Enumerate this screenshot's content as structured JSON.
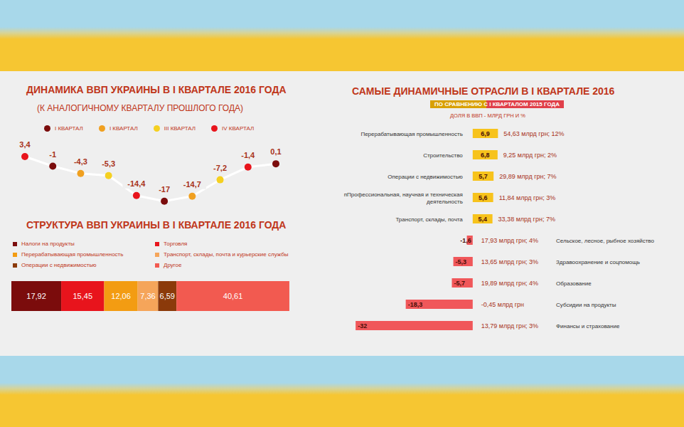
{
  "chart_data": [
    {
      "type": "line",
      "title": "ДИНАМИКА ВВП УКРАИНЫ В I КВАРТАЛЕ 2016 ГОДА",
      "subtitle": "(К АНАЛОГИЧНОМУ КВАРТАЛУ ПРОШЛОГО ГОДА)",
      "categories": [
        null,
        null,
        null,
        null,
        null,
        null,
        null,
        null,
        null,
        null
      ],
      "ylim": [
        -20,
        6
      ],
      "tick_labels": false,
      "legend": "top",
      "data_labels": true,
      "series": [
        {
          "type": "line",
          "color": "#ffffff",
          "values": [
            3.4,
            -1,
            -4.3,
            -5.3,
            -14.4,
            -17,
            -14.7,
            -7.2,
            -1.4,
            0.1
          ],
          "value_labels": [
            "3,4",
            "-1",
            "-4,3",
            "-5,3",
            "-14,4",
            "-17",
            "-14,7",
            "-7,2",
            "-1,4",
            "0,1"
          ]
        },
        {
          "name": "I КВАРТАЛ",
          "type": "scatter",
          "marker": "circle",
          "color": "#7b0c0c",
          "values": [
            null,
            -1,
            null,
            null,
            null,
            -17,
            null,
            null,
            null,
            0.1
          ]
        },
        {
          "name": "I КВАРТАЛ",
          "type": "scatter",
          "marker": "circle",
          "color": "#f0a020",
          "values": [
            null,
            null,
            -4.3,
            null,
            null,
            null,
            -14.7,
            null,
            null,
            null
          ]
        },
        {
          "name": "III КВАРТАЛ",
          "type": "scatter",
          "marker": "circle",
          "color": "#f5d020",
          "values": [
            null,
            null,
            null,
            -5.3,
            null,
            null,
            null,
            -7.2,
            null,
            null
          ]
        },
        {
          "name": "IV КВАРТАЛ",
          "type": "scatter",
          "marker": "circle",
          "color": "#e8141c",
          "values": [
            3.4,
            null,
            null,
            null,
            -14.4,
            null,
            null,
            null,
            -1.4,
            null
          ]
        }
      ]
    },
    {
      "type": "bar",
      "orientation": "horizontal",
      "stacked": true,
      "title": "СТРУКТУРА ВВП УКРАИНЫ В I КВАРТАЛЕ 2016 ГОДА",
      "categories": [
        null
      ],
      "xlim": [
        0,
        100
      ],
      "tick_labels": false,
      "legend": "top",
      "data_labels": true,
      "series": [
        {
          "name": "Налоги на продукты",
          "color": "#7b0c0c",
          "values": [
            17.92
          ],
          "value_labels": [
            "17,92"
          ]
        },
        {
          "name": "Торговля",
          "color": "#e8141c",
          "values": [
            15.45
          ],
          "value_labels": [
            "15,45"
          ]
        },
        {
          "name": "Перерабатывающая промышленность",
          "color": "#f39c12",
          "values": [
            12.06
          ],
          "value_labels": [
            "12,06"
          ]
        },
        {
          "name": "Транспорт, склады, почта и курьерские службы",
          "color": "#f5a55a",
          "values": [
            7.36
          ],
          "value_labels": [
            "7,36"
          ]
        },
        {
          "name": "Операции с недвижимостью",
          "color": "#8b3a0a",
          "values": [
            6.59
          ],
          "value_labels": [
            "6,59"
          ]
        },
        {
          "name": "Другое",
          "color": "#f25a50",
          "values": [
            40.61
          ],
          "value_labels": [
            "40,61"
          ]
        }
      ]
    },
    {
      "type": "bar",
      "orientation": "horizontal",
      "title": "САМЫЕ ДИНАМИЧНЫЕ ОТРАСЛИ В I КВАРТАЛЕ 2016",
      "subtitle": "ПО СРАВНЕНИЮ С I КВАРТАЛОМ 2015 ГОДА",
      "annotations_title": "ДОЛЯ В ВВП - МЛРД ГРН И %",
      "categories": [
        "Перерабатывающая промышленность",
        "Строительство",
        "Операции с недвижимостью",
        "пПрофессиональная, научная и техническая деятельность",
        "Транспорт, склады, почта",
        "Сельское, лесное, рыбное хозяйство",
        "Здравоохранение и соцпомощь",
        "Образование",
        "Субсидии на продукты",
        "Финансы и страхование"
      ],
      "values": [
        6.9,
        6.8,
        5.7,
        5.6,
        5.4,
        -1.6,
        -5.3,
        -5.7,
        -18.3,
        -32
      ],
      "value_labels": [
        "6,9",
        "6,8",
        "5,7",
        "5,6",
        "5,4",
        "-1,6",
        "-5,3",
        "-5,7",
        "-18,3",
        "-32"
      ],
      "colors": [
        "#f7c31c",
        "#f7c31c",
        "#f7c31c",
        "#f7c31c",
        "#f7c31c",
        "#f0575a",
        "#f0575a",
        "#f0575a",
        "#f0575a",
        "#f0575a"
      ],
      "annotations": [
        "54,63 млрд грн; 12%",
        "9,25 млрд грн; 2%",
        "29,89 млрд грн; 7%",
        "11,84 млрд грн; 3%",
        "33,38 млрд грн; 7%",
        "17,93 млрд грн; 4%",
        "13,65 млрд грн; 3%",
        "19,89 млрд грн; 4%",
        "-0,45 млрд грн",
        "13,79 млрд грн; 3%"
      ],
      "xlim": [
        -33,
        8
      ],
      "tick_labels": false,
      "data_labels": true
    }
  ]
}
